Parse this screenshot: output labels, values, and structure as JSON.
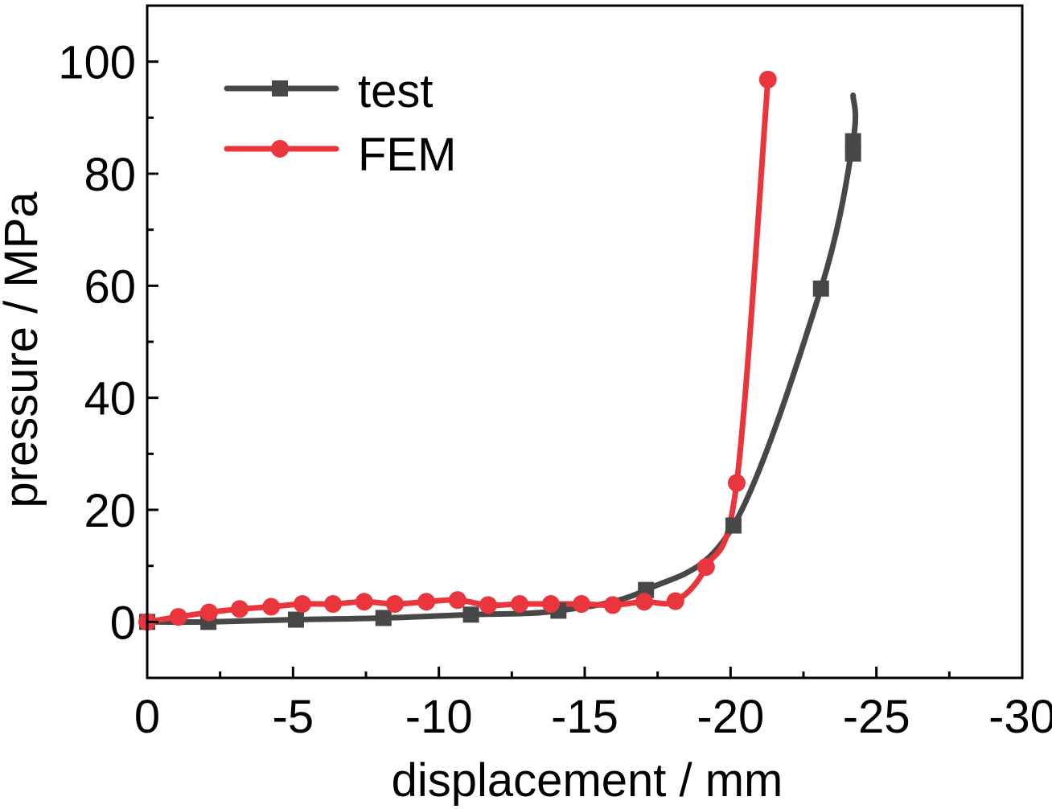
{
  "chart_data": {
    "type": "line",
    "title": "",
    "xlabel": "displacement / mm",
    "ylabel": "pressure / MPa",
    "xlim": [
      0,
      -30
    ],
    "ylim": [
      -10,
      110
    ],
    "xticks": [
      0,
      -5,
      -10,
      -15,
      -20,
      -25,
      -30
    ],
    "xtick_labels": [
      "0",
      "-5",
      "-10",
      "-15",
      "-20",
      "-25",
      "-30"
    ],
    "yticks": [
      0,
      20,
      40,
      60,
      80,
      100
    ],
    "ytick_labels": [
      "0",
      "20",
      "40",
      "60",
      "80",
      "100"
    ],
    "grid": false,
    "legend_position": "top-left",
    "series": [
      {
        "name": "test",
        "color": "#474747",
        "marker": "square",
        "x": [
          0,
          -2.1,
          -5.1,
          -8.1,
          -11.1,
          -14.1,
          -17.1,
          -20.1,
          -23.1,
          -24.2,
          -24.2
        ],
        "y": [
          0,
          0,
          0.4,
          0.7,
          1.3,
          2.0,
          5.7,
          17.2,
          59.5,
          83.6,
          85.8
        ],
        "curve_end": {
          "x": -24.2,
          "y": 94
        }
      },
      {
        "name": "FEM",
        "color": "#e8363c",
        "marker": "circle",
        "x": [
          0,
          -1.07,
          -2.12,
          -3.17,
          -4.25,
          -5.32,
          -6.37,
          -7.44,
          -8.49,
          -9.57,
          -10.64,
          -11.69,
          -12.77,
          -13.84,
          -14.89,
          -15.96,
          -17.04,
          -18.11,
          -19.16,
          -20.21,
          -21.28
        ],
        "y": [
          0,
          0.9,
          1.7,
          2.3,
          2.7,
          3.2,
          3.2,
          3.6,
          3.2,
          3.6,
          3.9,
          3.0,
          3.2,
          3.2,
          3.2,
          3.0,
          3.6,
          3.7,
          9.8,
          24.8,
          96.8
        ]
      }
    ]
  }
}
